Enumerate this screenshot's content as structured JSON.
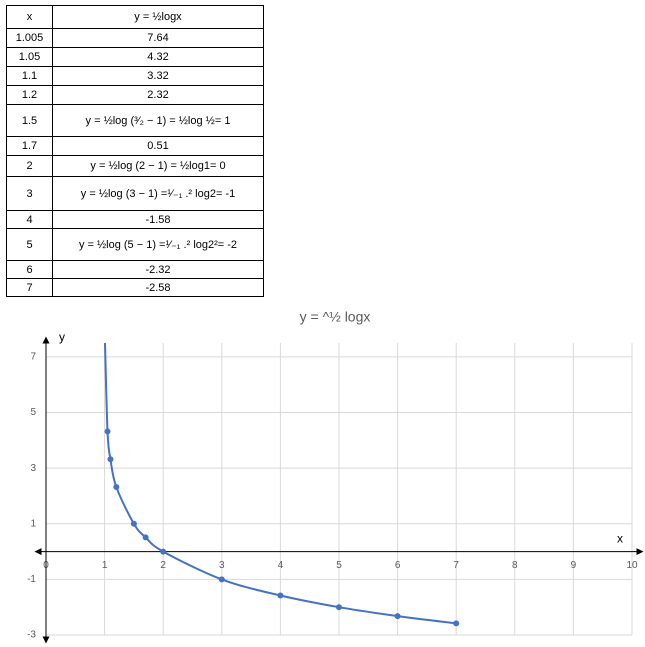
{
  "table": {
    "header": [
      "x",
      "y = ½logx"
    ],
    "rows": [
      [
        "1.005",
        "7.64"
      ],
      [
        "1.05",
        "4.32"
      ],
      [
        "1.1",
        "3.32"
      ],
      [
        "1.2",
        "2.32"
      ],
      [
        "1.5",
        "y = ½log (³⁄₂ − 1) = ½log ½= 1"
      ],
      [
        "1.7",
        "0.51"
      ],
      [
        "2",
        "y = ½log (2 − 1) = ½log1= 0"
      ],
      [
        "3",
        "y = ½log (3 − 1) =¹⁄₋₁ .² log2= -1"
      ],
      [
        "4",
        "-1.58"
      ],
      [
        "5",
        "y = ½log (5 − 1) =¹⁄₋₁ .² log2²= -2"
      ],
      [
        "6",
        "-2.32"
      ],
      [
        "7",
        "-2.58"
      ]
    ]
  },
  "chart_data": {
    "type": "line",
    "title": "y = ^½  logx",
    "x_label": "x",
    "y_label": "y",
    "x": [
      1.005,
      1.05,
      1.1,
      1.2,
      1.5,
      1.7,
      2,
      3,
      4,
      5,
      6,
      7
    ],
    "values": [
      7.64,
      4.32,
      3.32,
      2.32,
      1,
      0.51,
      0,
      -1,
      -1.58,
      -2,
      -2.32,
      -2.58
    ],
    "color": "#4472c4",
    "xlim": [
      0,
      10
    ],
    "xticks": [
      0,
      1,
      2,
      3,
      4,
      5,
      6,
      7,
      8,
      9,
      10
    ],
    "ylim": [
      -3,
      7.5
    ],
    "yticks": [
      -3,
      -1,
      1,
      3,
      5,
      7
    ],
    "grid": true
  }
}
